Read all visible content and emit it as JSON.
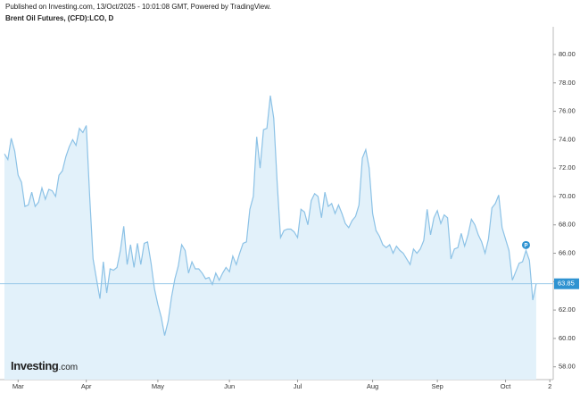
{
  "chart_data": {
    "type": "area",
    "published": "Published on Investing.com, 13/Oct/2025 - 10:01:08 GMT, Powered by TradingView.",
    "title": "Brent Oil Futures, (CFD):LCO, D",
    "watermark": "Investing",
    "watermark_suffix": ".com",
    "marker_label": "P",
    "color": "#8cc2e6",
    "fill": "#e2f1fa",
    "categories": [
      null,
      null,
      null,
      null,
      "Mar",
      null,
      null,
      null,
      null,
      null,
      null,
      null,
      null,
      null,
      null,
      null,
      null,
      null,
      null,
      null,
      null,
      null,
      null,
      null,
      "Apr",
      null,
      null,
      null,
      null,
      null,
      null,
      null,
      null,
      null,
      null,
      null,
      null,
      null,
      null,
      null,
      null,
      null,
      null,
      null,
      null,
      "May",
      null,
      null,
      null,
      null,
      null,
      null,
      null,
      null,
      null,
      null,
      null,
      null,
      null,
      null,
      null,
      null,
      null,
      null,
      null,
      null,
      "Jun",
      null,
      null,
      null,
      null,
      null,
      null,
      null,
      null,
      null,
      null,
      null,
      null,
      null,
      null,
      null,
      null,
      null,
      null,
      null,
      "Jul",
      null,
      null,
      null,
      null,
      null,
      null,
      null,
      null,
      null,
      null,
      null,
      null,
      null,
      null,
      null,
      null,
      null,
      null,
      null,
      null,
      null,
      "Aug",
      null,
      null,
      null,
      null,
      null,
      null,
      null,
      null,
      null,
      null,
      null,
      null,
      null,
      null,
      null,
      null,
      null,
      null,
      "Sep",
      null,
      null,
      null,
      null,
      null,
      null,
      null,
      null,
      null,
      null,
      null,
      null,
      null,
      null,
      null,
      null,
      null,
      null,
      null,
      "Oct",
      null,
      null,
      null,
      null,
      null,
      null,
      null,
      null,
      null,
      null,
      null,
      null,
      "2"
    ],
    "values": [
      73.0,
      72.6,
      74.1,
      73.2,
      71.5,
      71.0,
      69.3,
      69.4,
      70.3,
      69.3,
      69.6,
      70.6,
      69.8,
      70.5,
      70.4,
      70.0,
      71.5,
      71.8,
      72.8,
      73.5,
      74.0,
      73.6,
      74.8,
      74.5,
      75.0,
      70.0,
      65.6,
      64.2,
      62.8,
      65.4,
      63.2,
      64.9,
      64.8,
      65.0,
      66.2,
      67.9,
      65.2,
      66.6,
      65.0,
      66.7,
      65.2,
      66.7,
      66.8,
      65.3,
      63.5,
      62.4,
      61.5,
      60.2,
      61.2,
      62.9,
      64.2,
      65.1,
      66.6,
      66.2,
      64.6,
      65.4,
      64.9,
      64.9,
      64.6,
      64.2,
      64.3,
      63.8,
      64.6,
      64.1,
      64.6,
      65.0,
      64.7,
      65.8,
      65.2,
      66.0,
      66.7,
      66.8,
      69.1,
      70.0,
      74.2,
      72.0,
      74.7,
      74.8,
      77.1,
      75.5,
      71.0,
      67.1,
      67.6,
      67.7,
      67.7,
      67.5,
      67.1,
      69.1,
      68.9,
      68.0,
      69.7,
      70.2,
      70.0,
      68.5,
      70.3,
      69.3,
      69.5,
      68.8,
      69.4,
      68.8,
      68.1,
      67.8,
      68.3,
      68.6,
      69.4,
      72.7,
      73.3,
      72.0,
      68.8,
      67.6,
      67.2,
      66.6,
      66.4,
      66.6,
      66.0,
      66.5,
      66.2,
      66.0,
      65.6,
      65.2,
      66.3,
      66.0,
      66.3,
      66.9,
      69.1,
      67.3,
      68.5,
      69.0,
      68.1,
      68.7,
      68.5,
      65.6,
      66.3,
      66.4,
      67.4,
      66.5,
      67.3,
      68.4,
      68.0,
      67.3,
      66.8,
      66.0,
      67.0,
      69.2,
      69.5,
      70.1,
      67.8,
      67.0,
      66.2,
      64.1,
      64.7,
      65.3,
      65.4,
      66.2,
      65.5,
      62.7,
      63.85,
      null,
      null,
      null,
      null
    ],
    "ylim": [
      57.1,
      81.95
    ],
    "yticks": [
      {
        "value": 58,
        "label": "58.00"
      },
      {
        "value": 60,
        "label": "60.00"
      },
      {
        "value": 62,
        "label": "62.00"
      },
      {
        "value": 64,
        "label": "64.00"
      },
      {
        "value": 66,
        "label": "66.00"
      },
      {
        "value": 68,
        "label": "68.00"
      },
      {
        "value": 70,
        "label": "70.00"
      },
      {
        "value": 72,
        "label": "72.00"
      },
      {
        "value": 74,
        "label": "74.00"
      },
      {
        "value": 76,
        "label": "76.00"
      },
      {
        "value": 78,
        "label": "78.00"
      },
      {
        "value": 80,
        "label": "80.00"
      }
    ],
    "grid": false
  }
}
